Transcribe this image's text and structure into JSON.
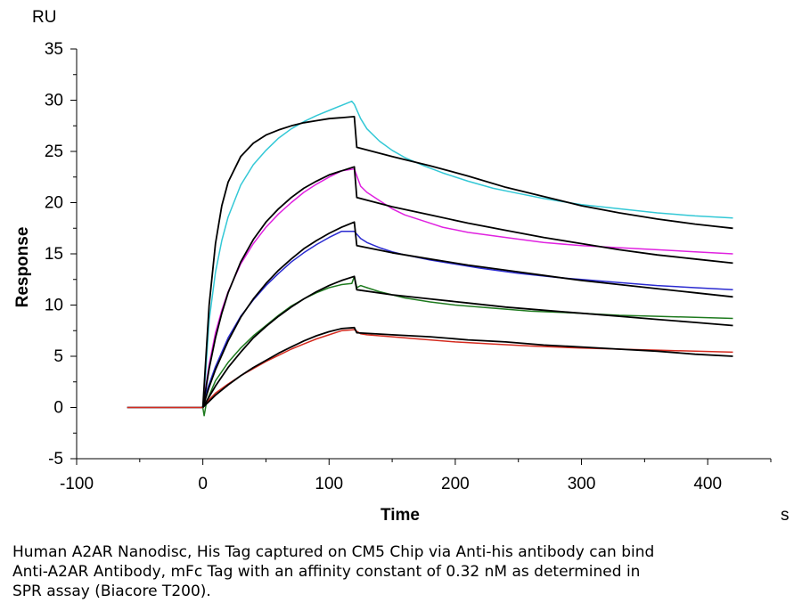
{
  "chart_data": {
    "type": "line",
    "title": "",
    "xlabel": "Time",
    "ylabel": "Response",
    "x_unit": "s",
    "y_unit": "RU",
    "xlim": [
      -100,
      450
    ],
    "ylim": [
      -5,
      35
    ],
    "x_ticks": [
      -100,
      0,
      100,
      200,
      300,
      400
    ],
    "y_ticks": [
      -5,
      0,
      5,
      10,
      15,
      20,
      25,
      30,
      35
    ],
    "grid": false,
    "legend": "none",
    "series": [
      {
        "color": "#33c8d6",
        "x": [
          -60,
          0,
          2,
          5,
          10,
          15,
          20,
          30,
          40,
          50,
          60,
          70,
          80,
          90,
          100,
          110,
          118,
          120,
          125,
          130,
          140,
          150,
          160,
          175,
          190,
          210,
          230,
          250,
          270,
          300,
          330,
          360,
          390,
          420
        ],
        "y": [
          0,
          0,
          3,
          8.5,
          13.2,
          16.3,
          18.6,
          21.7,
          23.7,
          25.1,
          26.3,
          27.2,
          27.9,
          28.5,
          29.0,
          29.5,
          29.9,
          29.6,
          28.2,
          27.2,
          26.0,
          25.1,
          24.4,
          23.6,
          22.9,
          22.1,
          21.4,
          20.9,
          20.4,
          19.8,
          19.4,
          19.0,
          18.7,
          18.5
        ]
      },
      {
        "color": "#e022e0",
        "x": [
          -60,
          0,
          2,
          5,
          10,
          15,
          20,
          30,
          40,
          50,
          60,
          70,
          80,
          90,
          100,
          110,
          120,
          125,
          130,
          140,
          150,
          160,
          175,
          190,
          210,
          240,
          270,
          300,
          330,
          360,
          390,
          420
        ],
        "y": [
          0,
          0,
          1.8,
          4.2,
          7.3,
          9.5,
          11.3,
          14.0,
          16.0,
          17.6,
          18.9,
          20.0,
          21.0,
          21.8,
          22.5,
          23.1,
          23.3,
          21.6,
          21.0,
          20.2,
          19.4,
          18.8,
          18.2,
          17.6,
          17.1,
          16.6,
          16.1,
          15.8,
          15.6,
          15.4,
          15.2,
          15.0
        ]
      },
      {
        "color": "#2a2ad0",
        "x": [
          -60,
          0,
          3,
          10,
          20,
          30,
          40,
          50,
          60,
          70,
          80,
          90,
          100,
          110,
          120,
          125,
          130,
          140,
          150,
          160,
          180,
          200,
          220,
          250,
          280,
          300,
          330,
          360,
          390,
          420
        ],
        "y": [
          0,
          0,
          1.6,
          4.0,
          6.8,
          8.9,
          10.5,
          11.9,
          13.1,
          14.2,
          15.1,
          15.9,
          16.6,
          17.2,
          17.2,
          16.5,
          16.1,
          15.6,
          15.2,
          14.9,
          14.4,
          14.0,
          13.6,
          13.1,
          12.7,
          12.5,
          12.2,
          11.9,
          11.7,
          11.5
        ]
      },
      {
        "color": "#1e7a1e",
        "x": [
          -60,
          0,
          1,
          3,
          10,
          20,
          30,
          40,
          50,
          60,
          70,
          80,
          90,
          100,
          110,
          118,
          120,
          122,
          125,
          130,
          140,
          150,
          160,
          180,
          200,
          230,
          260,
          300,
          330,
          360,
          390,
          420
        ],
        "y": [
          0,
          0,
          -0.8,
          0.6,
          2.6,
          4.4,
          5.8,
          7.0,
          8.0,
          9.0,
          9.9,
          10.6,
          11.2,
          11.7,
          12.0,
          12.1,
          12.8,
          11.7,
          11.9,
          11.7,
          11.3,
          11.0,
          10.7,
          10.3,
          10.0,
          9.7,
          9.4,
          9.2,
          9.0,
          8.9,
          8.8,
          8.7
        ]
      },
      {
        "color": "#d42a1e",
        "x": [
          -60,
          0,
          2,
          10,
          20,
          30,
          40,
          50,
          60,
          70,
          80,
          90,
          100,
          110,
          120,
          125,
          130,
          150,
          170,
          200,
          230,
          260,
          300,
          330,
          360,
          390,
          420
        ],
        "y": [
          0,
          0,
          0.4,
          1.4,
          2.3,
          3.1,
          3.8,
          4.5,
          5.1,
          5.7,
          6.2,
          6.7,
          7.1,
          7.5,
          7.6,
          7.2,
          7.1,
          6.9,
          6.7,
          6.4,
          6.2,
          6.0,
          5.8,
          5.7,
          5.6,
          5.5,
          5.4
        ]
      },
      {
        "color": "#000000",
        "x": [
          0,
          5,
          10,
          15,
          20,
          30,
          40,
          50,
          60,
          70,
          80,
          90,
          100,
          110,
          120,
          122,
          150,
          180,
          210,
          240,
          270,
          300,
          330,
          360,
          390,
          420
        ],
        "y": [
          0,
          10.0,
          16.0,
          19.7,
          22.0,
          24.5,
          25.8,
          26.6,
          27.1,
          27.5,
          27.8,
          28.0,
          28.2,
          28.3,
          28.4,
          25.4,
          24.5,
          23.6,
          22.6,
          21.5,
          20.6,
          19.7,
          19.0,
          18.4,
          17.9,
          17.5
        ]
      },
      {
        "color": "#000000",
        "x": [
          0,
          5,
          10,
          15,
          20,
          30,
          40,
          50,
          60,
          70,
          80,
          90,
          100,
          110,
          120,
          122,
          150,
          180,
          210,
          240,
          270,
          300,
          330,
          360,
          390,
          420
        ],
        "y": [
          0,
          3.8,
          6.8,
          9.2,
          11.2,
          14.2,
          16.4,
          18.1,
          19.4,
          20.5,
          21.4,
          22.1,
          22.7,
          23.1,
          23.5,
          20.5,
          19.6,
          18.8,
          18.0,
          17.3,
          16.6,
          16.0,
          15.4,
          14.9,
          14.5,
          14.1
        ]
      },
      {
        "color": "#000000",
        "x": [
          0,
          5,
          10,
          20,
          30,
          40,
          50,
          60,
          70,
          80,
          90,
          100,
          110,
          120,
          122,
          150,
          180,
          210,
          240,
          270,
          300,
          330,
          360,
          390,
          420
        ],
        "y": [
          0,
          2.0,
          3.7,
          6.5,
          8.8,
          10.6,
          12.1,
          13.4,
          14.5,
          15.5,
          16.3,
          17.0,
          17.6,
          18.1,
          15.8,
          15.1,
          14.5,
          13.9,
          13.4,
          12.9,
          12.4,
          12.0,
          11.6,
          11.2,
          10.8
        ]
      },
      {
        "color": "#000000",
        "x": [
          0,
          10,
          20,
          30,
          40,
          50,
          60,
          70,
          80,
          90,
          100,
          110,
          120,
          122,
          150,
          180,
          210,
          240,
          270,
          300,
          330,
          360,
          390,
          420
        ],
        "y": [
          0,
          2.1,
          3.9,
          5.4,
          6.8,
          7.9,
          8.9,
          9.8,
          10.6,
          11.3,
          11.9,
          12.4,
          12.8,
          11.5,
          11.0,
          10.6,
          10.2,
          9.8,
          9.5,
          9.2,
          8.9,
          8.6,
          8.3,
          8.0
        ]
      },
      {
        "color": "#000000",
        "x": [
          0,
          10,
          20,
          30,
          40,
          50,
          60,
          70,
          80,
          90,
          100,
          110,
          120,
          122,
          150,
          180,
          210,
          240,
          270,
          300,
          330,
          360,
          390,
          420
        ],
        "y": [
          0,
          1.2,
          2.2,
          3.1,
          3.9,
          4.6,
          5.3,
          5.9,
          6.5,
          7.0,
          7.4,
          7.7,
          7.8,
          7.3,
          7.1,
          6.9,
          6.6,
          6.4,
          6.1,
          5.9,
          5.7,
          5.5,
          5.2,
          5.0
        ]
      }
    ]
  },
  "caption": {
    "line1": "Human A2AR Nanodisc, His Tag captured on CM5 Chip via Anti-his antibody can bind",
    "line2": "Anti-A2AR Antibody, mFc Tag with an affinity constant of 0.32 nM as determined in",
    "line3": "SPR assay (Biacore T200)."
  }
}
